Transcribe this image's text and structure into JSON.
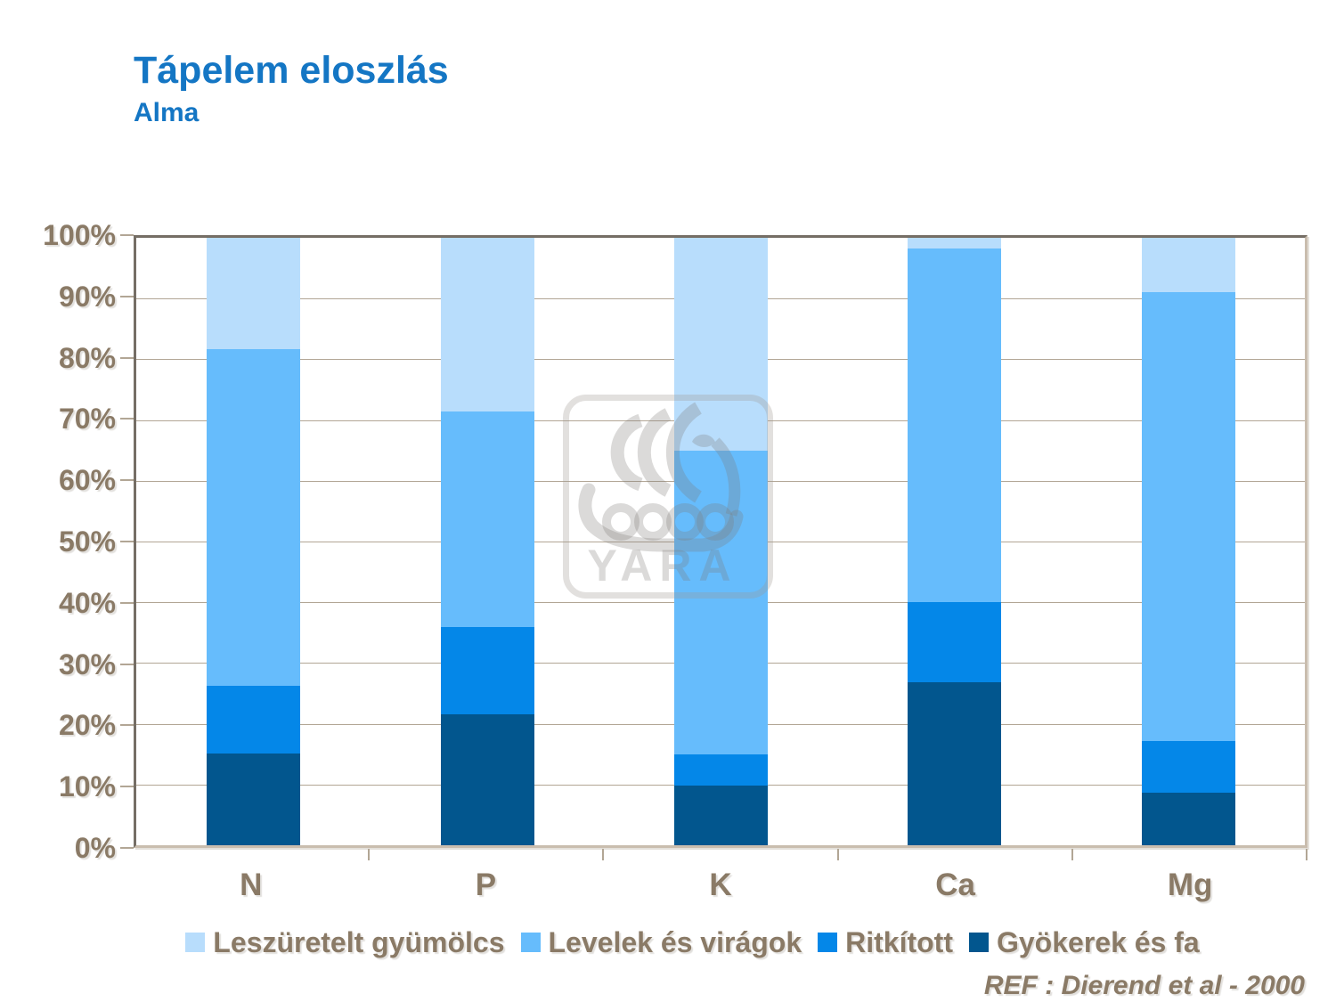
{
  "header": {
    "title": "Tápelem eloszlás",
    "subtitle": "Alma"
  },
  "chart_data": {
    "type": "bar",
    "stacked": true,
    "title": "Tápelem eloszlás",
    "subtitle": "Alma",
    "categories": [
      "N",
      "P",
      "K",
      "Ca",
      "Mg"
    ],
    "series": [
      {
        "name": "Gyökerek és fa",
        "color": "#02568e",
        "values": [
          15.1,
          21.5,
          9.8,
          26.9,
          8.7
        ]
      },
      {
        "name": "Ritkított",
        "color": "#0487e8",
        "values": [
          11.2,
          14.4,
          5.1,
          13.1,
          8.5
        ]
      },
      {
        "name": "Levelek és virágok",
        "color": "#66bcfc",
        "values": [
          55.4,
          35.5,
          50.0,
          58.3,
          73.9
        ]
      },
      {
        "name": "Leszüretelt gyümölcs",
        "color": "#b8ddfc",
        "values": [
          18.3,
          28.6,
          35.1,
          1.7,
          8.9
        ]
      }
    ],
    "ylim": [
      0,
      100
    ],
    "y_tick_labels": [
      "100%",
      "90%",
      "80%",
      "70%",
      "60%",
      "50%",
      "40%",
      "30%",
      "20%",
      "10%",
      "0%"
    ],
    "grid": true,
    "legend_position": "bottom",
    "legend_items": [
      {
        "label": "Leszüretelt gyümölcs",
        "color": "#b8ddfc"
      },
      {
        "label": "Levelek és virágok",
        "color": "#66bcfc"
      },
      {
        "label": "Ritkított",
        "color": "#0487e8"
      },
      {
        "label": "Gyökerek és fa",
        "color": "#02568e"
      }
    ]
  },
  "footer": {
    "reference": "REF :  Dierend et al - 2000"
  },
  "watermark": {
    "label": "YARA",
    "icon": "yara-viking-ship-logo"
  },
  "colors": {
    "title": "#1476c4",
    "axis_text": "#8a7a66",
    "grid": "#b2a695"
  }
}
